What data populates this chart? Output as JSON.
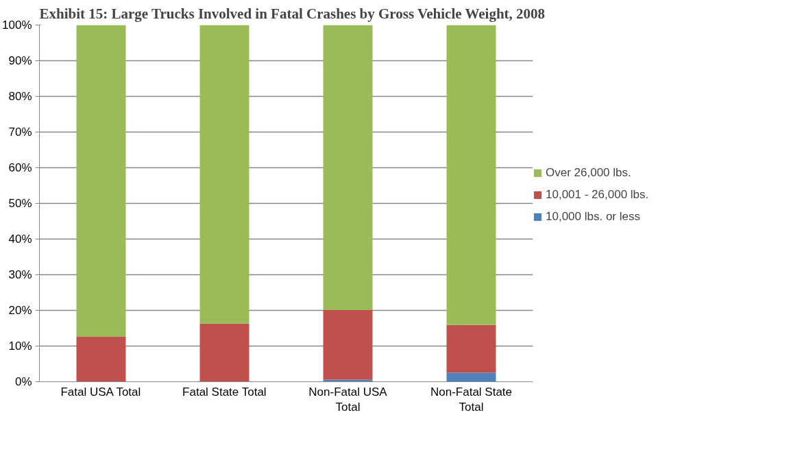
{
  "chart_data": {
    "type": "bar",
    "title": "Exhibit 15: Large Trucks Involved in Fatal Crashes by Gross Vehicle Weight, 2008",
    "categories": [
      "Fatal USA Total",
      "Fatal State Total",
      "Non-Fatal USA Total",
      "Non-Fatal State Total"
    ],
    "stacked": true,
    "series": [
      {
        "name": "10,000 lbs. or less",
        "color": "#4f81bd",
        "values": [
          0,
          0,
          0.6,
          2.5
        ]
      },
      {
        "name": "10,001 - 26,000 lbs.",
        "color": "#c0504d",
        "values": [
          12.6,
          16.3,
          19.5,
          13.4
        ]
      },
      {
        "name": "Over 26,000 lbs.",
        "color": "#9bbb59",
        "values": [
          87.4,
          83.7,
          79.9,
          84.1
        ]
      }
    ],
    "ylim": [
      0,
      100
    ],
    "yticks": [
      {
        "value": 0,
        "label": "0%"
      },
      {
        "value": 10,
        "label": "10%"
      },
      {
        "value": 20,
        "label": "20%"
      },
      {
        "value": 30,
        "label": "30%"
      },
      {
        "value": 40,
        "label": "40%"
      },
      {
        "value": 50,
        "label": "50%"
      },
      {
        "value": 60,
        "label": "60%"
      },
      {
        "value": 70,
        "label": "70%"
      },
      {
        "value": 80,
        "label": "80%"
      },
      {
        "value": 90,
        "label": "90%"
      },
      {
        "value": 100,
        "label": "100%"
      }
    ],
    "grid": "y",
    "legend": "right"
  }
}
